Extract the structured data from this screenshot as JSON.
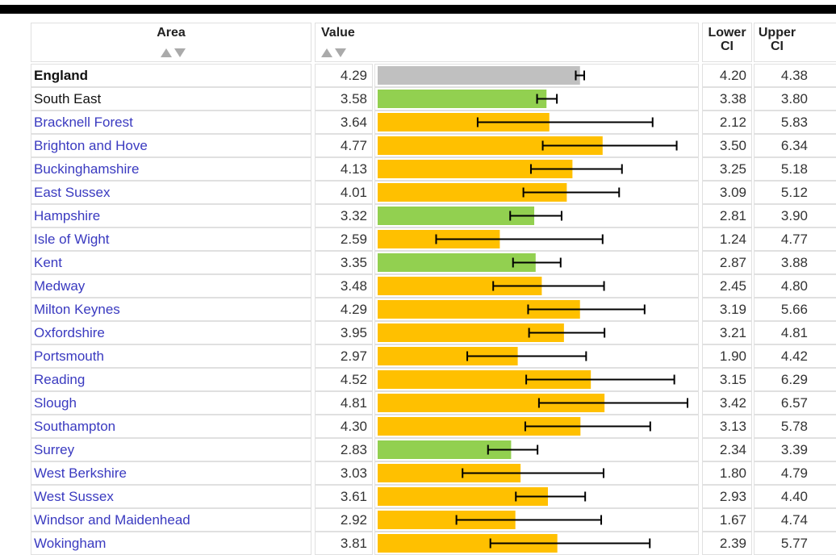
{
  "table": {
    "headers": {
      "area": "Area",
      "value": "Value",
      "lower": "Lower CI",
      "upper": "Upper CI"
    },
    "rows": [
      {
        "area": "England",
        "value": "4.29",
        "lower": "4.20",
        "upper": "4.38",
        "color": "#c0c0c0"
      },
      {
        "area": "South East",
        "value": "3.58",
        "lower": "3.38",
        "upper": "3.80",
        "color": "#92d050"
      },
      {
        "area": "Bracknell Forest",
        "value": "3.64",
        "lower": "2.12",
        "upper": "5.83",
        "color": "#ffc000"
      },
      {
        "area": "Brighton and Hove",
        "value": "4.77",
        "lower": "3.50",
        "upper": "6.34",
        "color": "#ffc000"
      },
      {
        "area": "Buckinghamshire",
        "value": "4.13",
        "lower": "3.25",
        "upper": "5.18",
        "color": "#ffc000"
      },
      {
        "area": "East Sussex",
        "value": "4.01",
        "lower": "3.09",
        "upper": "5.12",
        "color": "#ffc000"
      },
      {
        "area": "Hampshire",
        "value": "3.32",
        "lower": "2.81",
        "upper": "3.90",
        "color": "#92d050"
      },
      {
        "area": "Isle of Wight",
        "value": "2.59",
        "lower": "1.24",
        "upper": "4.77",
        "color": "#ffc000"
      },
      {
        "area": "Kent",
        "value": "3.35",
        "lower": "2.87",
        "upper": "3.88",
        "color": "#92d050"
      },
      {
        "area": "Medway",
        "value": "3.48",
        "lower": "2.45",
        "upper": "4.80",
        "color": "#ffc000"
      },
      {
        "area": "Milton Keynes",
        "value": "4.29",
        "lower": "3.19",
        "upper": "5.66",
        "color": "#ffc000"
      },
      {
        "area": "Oxfordshire",
        "value": "3.95",
        "lower": "3.21",
        "upper": "4.81",
        "color": "#ffc000"
      },
      {
        "area": "Portsmouth",
        "value": "2.97",
        "lower": "1.90",
        "upper": "4.42",
        "color": "#ffc000"
      },
      {
        "area": "Reading",
        "value": "4.52",
        "lower": "3.15",
        "upper": "6.29",
        "color": "#ffc000"
      },
      {
        "area": "Slough",
        "value": "4.81",
        "lower": "3.42",
        "upper": "6.57",
        "color": "#ffc000"
      },
      {
        "area": "Southampton",
        "value": "4.30",
        "lower": "3.13",
        "upper": "5.78",
        "color": "#ffc000"
      },
      {
        "area": "Surrey",
        "value": "2.83",
        "lower": "2.34",
        "upper": "3.39",
        "color": "#92d050"
      },
      {
        "area": "West Berkshire",
        "value": "3.03",
        "lower": "1.80",
        "upper": "4.79",
        "color": "#ffc000"
      },
      {
        "area": "West Sussex",
        "value": "3.61",
        "lower": "2.93",
        "upper": "4.40",
        "color": "#ffc000"
      },
      {
        "area": "Windsor and Maidenhead",
        "value": "2.92",
        "lower": "1.67",
        "upper": "4.74",
        "color": "#ffc000"
      },
      {
        "area": "Wokingham",
        "value": "3.81",
        "lower": "2.39",
        "upper": "5.77",
        "color": "#ffc000"
      }
    ]
  }
}
